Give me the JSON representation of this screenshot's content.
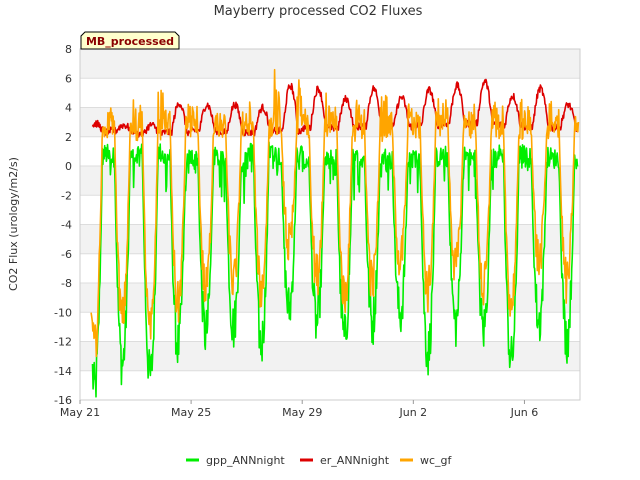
{
  "chart_data": {
    "type": "line",
    "title": "Mayberry processed CO2 Fluxes",
    "ylabel": "CO2 Flux (urology/m2/s)",
    "xlabel": "",
    "badge": "MB_processed",
    "ylim": [
      -16,
      8
    ],
    "yticks": [
      -16,
      -14,
      -12,
      -10,
      -8,
      -6,
      -4,
      -2,
      0,
      2,
      4,
      6,
      8
    ],
    "xlim": [
      "2016-05-21",
      "2016-06-08"
    ],
    "xticks": [
      {
        "date": "2016-05-21",
        "label": "May 21"
      },
      {
        "date": "2016-05-25",
        "label": "May 25"
      },
      {
        "date": "2016-05-29",
        "label": "May 29"
      },
      {
        "date": "2016-06-02",
        "label": "Jun 2"
      },
      {
        "date": "2016-06-06",
        "label": "Jun 6"
      }
    ],
    "grid": "horizontal-bands",
    "legend_position": "bottom",
    "series": [
      {
        "name": "gpp_ANNnight",
        "color": "#00ee00",
        "days": [
          "2016-05-21",
          "2016-05-22",
          "2016-05-23",
          "2016-05-24",
          "2016-05-25",
          "2016-05-26",
          "2016-05-27",
          "2016-05-28",
          "2016-05-29",
          "2016-05-30",
          "2016-05-31",
          "2016-06-01",
          "2016-06-02",
          "2016-06-03",
          "2016-06-04",
          "2016-06-05",
          "2016-06-06",
          "2016-06-07"
        ],
        "daily_min": [
          -15.2,
          -13.5,
          -14.4,
          -12.3,
          -11.5,
          -11.0,
          -12.2,
          -9.8,
          -10.8,
          -11.8,
          -10.7,
          -10.2,
          -12.8,
          -10.8,
          -11.2,
          -13.3,
          -10.7,
          -11.8
        ],
        "night_value": [
          0.8,
          0.6,
          0.9,
          0.5,
          0.6,
          0.3,
          1.0,
          0.8,
          0.3,
          0.5,
          0.6,
          0.4,
          0.6,
          0.7,
          0.5,
          0.8,
          0.6,
          0.5
        ]
      },
      {
        "name": "er_ANNnight",
        "color": "#dd0000",
        "days": [
          "2016-05-21",
          "2016-05-22",
          "2016-05-23",
          "2016-05-24",
          "2016-05-25",
          "2016-05-26",
          "2016-05-27",
          "2016-05-28",
          "2016-05-29",
          "2016-05-30",
          "2016-05-31",
          "2016-06-01",
          "2016-06-02",
          "2016-06-03",
          "2016-06-04",
          "2016-06-05",
          "2016-06-06",
          "2016-06-07"
        ],
        "night_value": [
          2.3,
          2.4,
          2.2,
          2.3,
          2.4,
          2.3,
          2.3,
          2.4,
          2.6,
          2.6,
          2.7,
          2.7,
          2.8,
          2.9,
          2.9,
          2.8,
          2.7,
          2.6
        ],
        "daily_max": [
          2.9,
          2.8,
          2.8,
          4.3,
          4.2,
          4.2,
          4.0,
          5.5,
          5.3,
          4.6,
          5.3,
          4.7,
          5.2,
          5.5,
          5.8,
          4.8,
          5.3,
          4.2
        ]
      },
      {
        "name": "wc_gf",
        "color": "#ffa500",
        "days": [
          "2016-05-21",
          "2016-05-22",
          "2016-05-23",
          "2016-05-24",
          "2016-05-25",
          "2016-05-26",
          "2016-05-27",
          "2016-05-28",
          "2016-05-29",
          "2016-05-30",
          "2016-05-31",
          "2016-06-01",
          "2016-06-02",
          "2016-06-03",
          "2016-06-04",
          "2016-06-05",
          "2016-06-06",
          "2016-06-07"
        ],
        "daily_min": [
          -12.5,
          -10.5,
          -11.5,
          -9.5,
          -8.5,
          -8.0,
          -8.5,
          -5.5,
          -7.5,
          -9.0,
          -8.0,
          -6.5,
          -8.5,
          -7.0,
          -8.5,
          -9.5,
          -6.5,
          -8.0
        ],
        "daily_max": [
          3.0,
          4.2,
          4.8,
          4.3,
          4.4,
          4.3,
          4.2,
          6.8,
          4.8,
          4.5,
          4.6,
          4.5,
          4.5,
          4.4,
          4.7,
          4.8,
          4.4,
          4.0
        ]
      }
    ]
  },
  "legend": {
    "items": [
      {
        "label": "gpp_ANNnight",
        "color": "#00ee00"
      },
      {
        "label": "er_ANNnight",
        "color": "#dd0000"
      },
      {
        "label": "wc_gf",
        "color": "#ffa500"
      }
    ]
  }
}
